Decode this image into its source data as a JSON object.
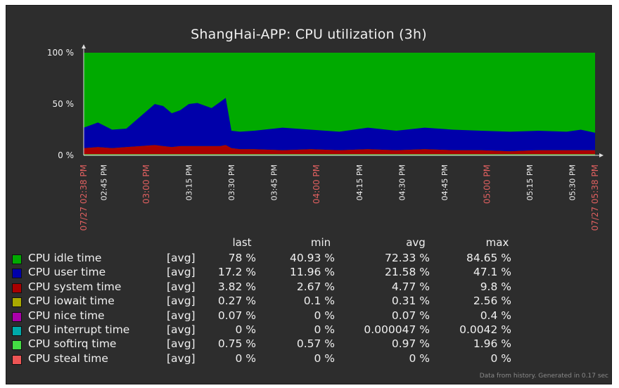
{
  "chart_data": {
    "type": "area",
    "title": "ShangHai-APP: CPU utilization (3h)",
    "y_ticks": [
      "100 %",
      "50 %",
      "0 %"
    ],
    "ylim": [
      0,
      100
    ],
    "x_ticks": [
      {
        "label": "07/27 02:38 PM",
        "highlight": true
      },
      {
        "label": "02:45 PM",
        "highlight": false
      },
      {
        "label": "03:00 PM",
        "highlight": true
      },
      {
        "label": "03:15 PM",
        "highlight": false
      },
      {
        "label": "03:30 PM",
        "highlight": false
      },
      {
        "label": "03:45 PM",
        "highlight": false
      },
      {
        "label": "04:00 PM",
        "highlight": true
      },
      {
        "label": "04:15 PM",
        "highlight": false
      },
      {
        "label": "04:30 PM",
        "highlight": false
      },
      {
        "label": "04:45 PM",
        "highlight": false
      },
      {
        "label": "05:00 PM",
        "highlight": true
      },
      {
        "label": "05:15 PM",
        "highlight": false
      },
      {
        "label": "05:30 PM",
        "highlight": false
      },
      {
        "label": "07/27 05:38 PM",
        "highlight": true
      }
    ],
    "x_minutes": [
      0,
      7,
      22,
      37,
      52,
      67,
      82,
      97,
      112,
      127,
      142,
      157,
      172,
      180
    ],
    "series_top": {
      "minutes": [
        0,
        5,
        10,
        15,
        20,
        25,
        28,
        31,
        34,
        37,
        40,
        45,
        48,
        50,
        52,
        55,
        60,
        70,
        80,
        90,
        100,
        110,
        120,
        130,
        140,
        150,
        160,
        170,
        175,
        180
      ],
      "user_plus_lower": [
        27,
        32,
        25,
        26,
        38,
        50,
        48,
        41,
        44,
        50,
        51,
        46,
        52,
        56,
        24,
        23,
        24,
        27,
        25,
        23,
        27,
        24,
        27,
        25,
        24,
        23,
        24,
        23,
        25,
        22
      ],
      "system_plus_lower": [
        7,
        8,
        7,
        8,
        9,
        10,
        9,
        8,
        9,
        9,
        9,
        9,
        9,
        10,
        7,
        6,
        6,
        5,
        6,
        5,
        6,
        5,
        6,
        5,
        5,
        4,
        5,
        5,
        5,
        5
      ],
      "lower": [
        1,
        1,
        1,
        1,
        1,
        1,
        1,
        1,
        1,
        1,
        1,
        1,
        1,
        1,
        1,
        1,
        1,
        1,
        1,
        1,
        1,
        1,
        1,
        1,
        1,
        1,
        1,
        1,
        1,
        1
      ]
    },
    "columns": [
      "last",
      "min",
      "avg",
      "max"
    ],
    "legend": [
      {
        "name": "CPU idle time",
        "agg": "[avg]",
        "color": "#00aa00",
        "last": "78 %",
        "min": "40.93 %",
        "avg": "72.33 %",
        "max": "84.65 %"
      },
      {
        "name": "CPU user time",
        "agg": "[avg]",
        "color": "#0000aa",
        "last": "17.2 %",
        "min": "11.96 %",
        "avg": "21.58 %",
        "max": "47.1 %"
      },
      {
        "name": "CPU system time",
        "agg": "[avg]",
        "color": "#aa0000",
        "last": "3.82 %",
        "min": "2.67 %",
        "avg": "4.77 %",
        "max": "9.8 %"
      },
      {
        "name": "CPU iowait time",
        "agg": "[avg]",
        "color": "#aaaa00",
        "last": "0.27 %",
        "min": "0.1 %",
        "avg": "0.31 %",
        "max": "2.56 %"
      },
      {
        "name": "CPU nice time",
        "agg": "[avg]",
        "color": "#aa00aa",
        "last": "0.07 %",
        "min": "0 %",
        "avg": "0.07 %",
        "max": "0.4 %"
      },
      {
        "name": "CPU interrupt time",
        "agg": "[avg]",
        "color": "#00aaaa",
        "last": "0 %",
        "min": "0 %",
        "avg": "0.000047 %",
        "max": "0.0042 %"
      },
      {
        "name": "CPU softirq time",
        "agg": "[avg]",
        "color": "#44dd44",
        "last": "0.75 %",
        "min": "0.57 %",
        "avg": "0.97 %",
        "max": "1.96 %"
      },
      {
        "name": "CPU steal time",
        "agg": "[avg]",
        "color": "#ee5555",
        "last": "0 %",
        "min": "0 %",
        "avg": "0 %",
        "max": "0 %"
      }
    ],
    "footnote": "Data from history. Generated in 0.17 sec"
  }
}
